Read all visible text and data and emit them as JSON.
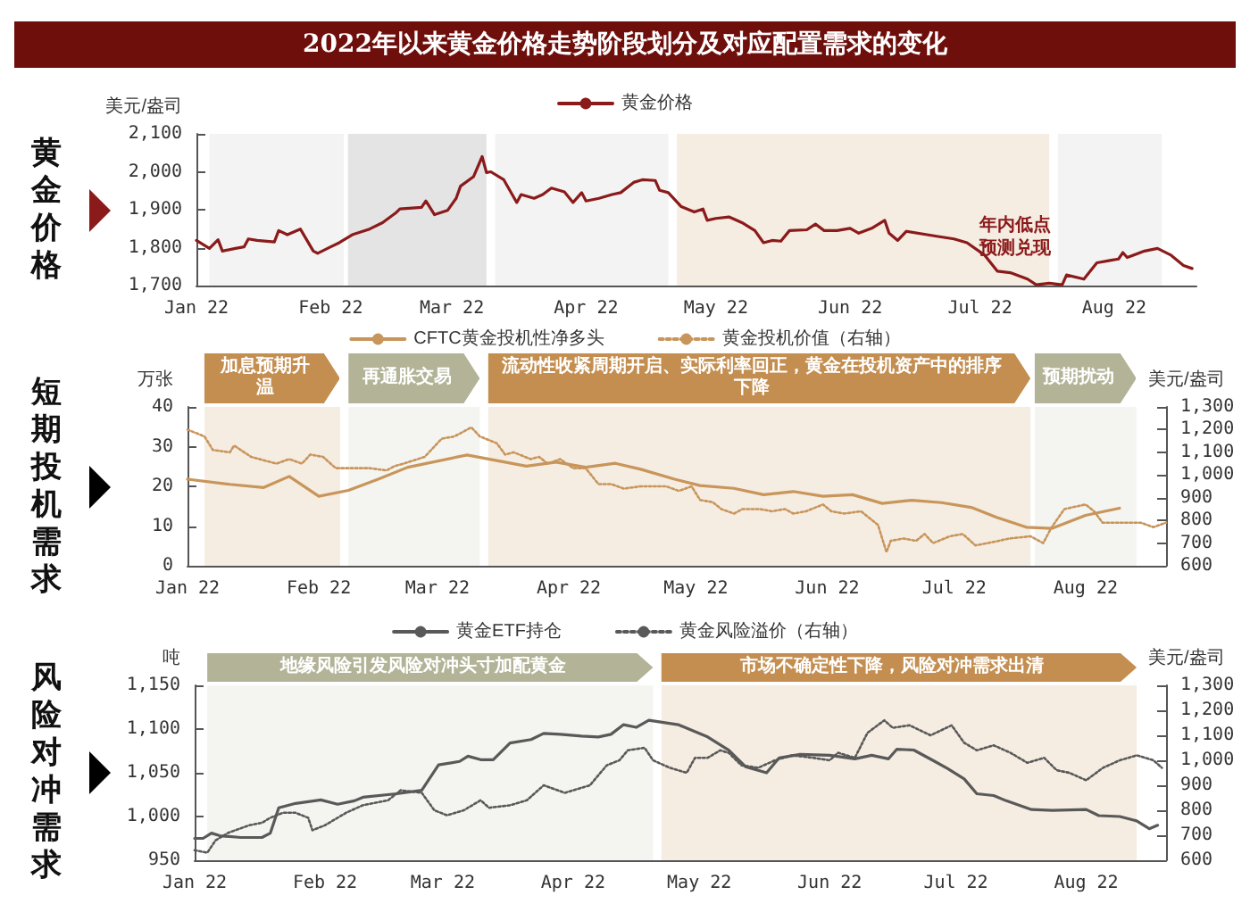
{
  "chart_data": [
    {
      "type": "line",
      "title": "2022年以来黄金价格走势阶段划分及对应配置需求的变化",
      "ylabel": "美元/盎司",
      "legend": "top",
      "marker": "none",
      "grid": false,
      "annotations": [
        "黄金价格",
        {
          "text": "年内低点预测兑现",
          "x": "2022-07-14",
          "y": 1702
        }
      ],
      "xlim": [
        "2022-01-01",
        "2022-08-20"
      ],
      "xticks": [
        {
          "value": "2022-01-01",
          "label": "Jan 22"
        },
        {
          "value": "2022-02-01",
          "label": "Feb 22"
        },
        {
          "value": "2022-03-01",
          "label": "Mar 22"
        },
        {
          "value": "2022-04-01",
          "label": "Apr 22"
        },
        {
          "value": "2022-05-01",
          "label": "May 22"
        },
        {
          "value": "2022-06-01",
          "label": "Jun 22"
        },
        {
          "value": "2022-07-01",
          "label": "Jul 22"
        },
        {
          "value": "2022-08-01",
          "label": "Aug 22"
        }
      ],
      "ylim": [
        1700,
        2100
      ],
      "yticks": [
        {
          "value": 1700,
          "label": "1,700"
        },
        {
          "value": 1800,
          "label": "1,800"
        },
        {
          "value": 1900,
          "label": "1,900"
        },
        {
          "value": 2000,
          "label": "2,000"
        },
        {
          "value": 2100,
          "label": "2,100"
        }
      ],
      "bands": [
        {
          "axis": "x",
          "from": "2022-01-04",
          "to": "2022-02-04",
          "color": "#f3f3f3"
        },
        {
          "axis": "x",
          "from": "2022-02-05",
          "to": "2022-03-09",
          "color": "#e4e4e4"
        },
        {
          "axis": "x",
          "from": "2022-03-11",
          "to": "2022-04-20",
          "color": "#f3f3f3"
        },
        {
          "axis": "x",
          "from": "2022-04-22",
          "to": "2022-07-17",
          "color": "#f5ece2"
        },
        {
          "axis": "x",
          "from": "2022-07-19",
          "to": "2022-08-12",
          "color": "#f3f3f3"
        }
      ],
      "series": [
        {
          "name": "黄金价格",
          "color": "#8b1a1a",
          "line_style": "solid",
          "x": [
            "2022-01-01",
            "2022-01-04",
            "2022-01-06",
            "2022-01-07",
            "2022-01-10",
            "2022-01-12",
            "2022-01-13",
            "2022-01-15",
            "2022-01-19",
            "2022-01-20",
            "2022-01-22",
            "2022-01-25",
            "2022-01-28",
            "2022-01-29",
            "2022-02-01",
            "2022-02-03",
            "2022-02-06",
            "2022-02-10",
            "2022-02-13",
            "2022-02-16",
            "2022-02-17",
            "2022-02-22",
            "2022-02-23",
            "2022-02-25",
            "2022-02-28",
            "2022-03-02",
            "2022-03-03",
            "2022-03-06",
            "2022-03-08",
            "2022-03-09",
            "2022-03-10",
            "2022-03-13",
            "2022-03-16",
            "2022-03-17",
            "2022-03-20",
            "2022-03-22",
            "2022-03-24",
            "2022-03-27",
            "2022-03-29",
            "2022-03-31",
            "2022-04-01",
            "2022-04-04",
            "2022-04-07",
            "2022-04-09",
            "2022-04-12",
            "2022-04-14",
            "2022-04-17",
            "2022-04-18",
            "2022-04-20",
            "2022-04-23",
            "2022-04-26",
            "2022-04-28",
            "2022-04-29",
            "2022-05-01",
            "2022-05-04",
            "2022-05-07",
            "2022-05-10",
            "2022-05-12",
            "2022-05-14",
            "2022-05-16",
            "2022-05-18",
            "2022-05-22",
            "2022-05-24",
            "2022-05-26",
            "2022-05-29",
            "2022-06-01",
            "2022-06-03",
            "2022-06-06",
            "2022-06-09",
            "2022-06-10",
            "2022-06-12",
            "2022-06-14",
            "2022-06-21",
            "2022-06-25",
            "2022-06-28",
            "2022-07-02",
            "2022-07-05",
            "2022-07-08",
            "2022-07-12",
            "2022-07-14",
            "2022-07-17",
            "2022-07-20",
            "2022-07-21",
            "2022-07-25",
            "2022-07-28",
            "2022-07-31",
            "2022-08-02",
            "2022-08-03",
            "2022-08-04",
            "2022-08-08",
            "2022-08-11",
            "2022-08-14",
            "2022-08-17",
            "2022-08-19"
          ],
          "values": [
            1819,
            1798,
            1821,
            1791,
            1798,
            1802,
            1823,
            1819,
            1815,
            1845,
            1834,
            1849,
            1791,
            1785,
            1802,
            1813,
            1834,
            1849,
            1866,
            1891,
            1902,
            1906,
            1923,
            1887,
            1898,
            1930,
            1962,
            1987,
            2040,
            1998,
            2000,
            1979,
            1919,
            1940,
            1930,
            1940,
            1957,
            1947,
            1919,
            1945,
            1923,
            1930,
            1940,
            1945,
            1972,
            1979,
            1977,
            1951,
            1945,
            1908,
            1894,
            1902,
            1872,
            1877,
            1881,
            1866,
            1845,
            1813,
            1819,
            1817,
            1845,
            1847,
            1862,
            1845,
            1845,
            1851,
            1838,
            1851,
            1872,
            1838,
            1819,
            1843,
            1830,
            1823,
            1813,
            1781,
            1738,
            1734,
            1717,
            1702,
            1706,
            1702,
            1728,
            1717,
            1760,
            1766,
            1770,
            1787,
            1774,
            1791,
            1798,
            1781,
            1753,
            1745
          ]
        }
      ]
    },
    {
      "type": "line",
      "ylabel": "万张",
      "y2label": "美元/盎司",
      "legend": "top",
      "marker": "none",
      "grid": false,
      "annotations": [
        "短期投机需求"
      ],
      "xlim": [
        "2022-01-01",
        "2022-08-20"
      ],
      "xticks": [
        {
          "value": "2022-01-01",
          "label": "Jan 22"
        },
        {
          "value": "2022-02-01",
          "label": "Feb 22"
        },
        {
          "value": "2022-03-01",
          "label": "Mar 22"
        },
        {
          "value": "2022-04-01",
          "label": "Apr 22"
        },
        {
          "value": "2022-05-01",
          "label": "May 22"
        },
        {
          "value": "2022-06-01",
          "label": "Jun 22"
        },
        {
          "value": "2022-07-01",
          "label": "Jul 22"
        },
        {
          "value": "2022-08-01",
          "label": "Aug 22"
        }
      ],
      "ylim": [
        0,
        40
      ],
      "yticks": [
        0,
        10,
        20,
        30,
        40
      ],
      "y2lim": [
        600,
        1300
      ],
      "y2ticks": [
        600,
        700,
        800,
        900,
        {
          "value": 1000,
          "label": "1,000"
        },
        {
          "value": 1100,
          "label": "1,100"
        },
        {
          "value": 1200,
          "label": "1,200"
        },
        {
          "value": 1300,
          "label": "1,300"
        }
      ],
      "bands": [
        {
          "axis": "x",
          "from": "2022-01-05",
          "to": "2022-02-06",
          "color": "#f5ece2",
          "label": "加息预期升温"
        },
        {
          "axis": "x",
          "from": "2022-02-08",
          "to": "2022-03-11",
          "color": "#f4f4f0",
          "label": "再通胀交易"
        },
        {
          "axis": "x",
          "from": "2022-03-13",
          "to": "2022-07-19",
          "color": "#f5ece2",
          "label": "流动性收紧周期开启、实际利率回正，黄金在投机资产中的排序下降"
        },
        {
          "axis": "x",
          "from": "2022-07-20",
          "to": "2022-08-13",
          "color": "#f4f4f0",
          "label": "预期扰动"
        }
      ],
      "series": [
        {
          "name": "CFTC黄金投机性净多头",
          "color": "#c8955a",
          "line_style": "solid",
          "x": [
            "2022-01-01",
            "2022-01-11",
            "2022-01-19",
            "2022-01-25",
            "2022-02-01",
            "2022-02-08",
            "2022-02-15",
            "2022-02-22",
            "2022-03-08",
            "2022-03-22",
            "2022-03-29",
            "2022-04-05",
            "2022-04-12",
            "2022-04-18",
            "2022-04-26",
            "2022-05-02",
            "2022-05-10",
            "2022-05-17",
            "2022-05-24",
            "2022-05-31",
            "2022-06-07",
            "2022-06-14",
            "2022-06-21",
            "2022-06-28",
            "2022-07-05",
            "2022-07-11",
            "2022-07-18",
            "2022-07-24",
            "2022-08-01",
            "2022-08-09"
          ],
          "values": [
            21.8,
            20.5,
            19.7,
            22.5,
            17.5,
            19,
            21.8,
            24.8,
            27.9,
            25.1,
            26.1,
            24.8,
            25.8,
            24.3,
            21.8,
            20.2,
            19.5,
            17.9,
            18.7,
            17.5,
            17.9,
            15.7,
            16.5,
            15.9,
            14.7,
            12.2,
            9.7,
            9.4,
            12.7,
            14.5
          ]
        },
        {
          "name": "黄金投机价值（右轴）",
          "color": "#c8955a",
          "line_style": "dotted",
          "axis": "y2",
          "x": [
            "2022-01-01",
            "2022-01-05",
            "2022-01-07",
            "2022-01-11",
            "2022-01-12",
            "2022-01-16",
            "2022-01-20",
            "2022-01-22",
            "2022-01-25",
            "2022-01-28",
            "2022-01-30",
            "2022-02-02",
            "2022-02-05",
            "2022-02-10",
            "2022-02-13",
            "2022-02-17",
            "2022-02-19",
            "2022-02-21",
            "2022-02-26",
            "2022-03-02",
            "2022-03-05",
            "2022-03-09",
            "2022-03-11",
            "2022-03-15",
            "2022-03-17",
            "2022-03-19",
            "2022-03-23",
            "2022-03-25",
            "2022-03-27",
            "2022-03-30",
            "2022-04-02",
            "2022-04-05",
            "2022-04-08",
            "2022-04-11",
            "2022-04-14",
            "2022-04-18",
            "2022-04-21",
            "2022-04-24",
            "2022-04-27",
            "2022-04-30",
            "2022-05-02",
            "2022-05-05",
            "2022-05-07",
            "2022-05-10",
            "2022-05-12",
            "2022-05-16",
            "2022-05-19",
            "2022-05-22",
            "2022-05-24",
            "2022-05-27",
            "2022-05-31",
            "2022-06-02",
            "2022-06-05",
            "2022-06-09",
            "2022-06-13",
            "2022-06-15",
            "2022-06-16",
            "2022-06-19",
            "2022-06-22",
            "2022-06-24",
            "2022-06-26",
            "2022-06-30",
            "2022-07-03",
            "2022-07-06",
            "2022-07-09",
            "2022-07-14",
            "2022-07-19",
            "2022-07-22",
            "2022-07-24",
            "2022-07-27",
            "2022-08-01",
            "2022-08-03",
            "2022-08-05",
            "2022-08-09",
            "2022-08-14",
            "2022-08-17",
            "2022-08-20"
          ],
          "values": [
            1200,
            1170,
            1110,
            1100,
            1130,
            1080,
            1060,
            1050,
            1070,
            1050,
            1090,
            1080,
            1030,
            1030,
            1030,
            1020,
            1040,
            1050,
            1080,
            1160,
            1170,
            1210,
            1170,
            1140,
            1090,
            1100,
            1070,
            1080,
            1050,
            1070,
            1030,
            1030,
            960,
            960,
            940,
            950,
            950,
            950,
            930,
            950,
            890,
            880,
            850,
            830,
            850,
            850,
            840,
            850,
            830,
            840,
            870,
            840,
            830,
            840,
            780,
            660,
            710,
            720,
            710,
            740,
            700,
            730,
            740,
            690,
            700,
            720,
            730,
            700,
            770,
            850,
            870,
            840,
            790,
            790,
            790,
            770,
            790
          ]
        }
      ]
    },
    {
      "type": "line",
      "ylabel": "吨",
      "y2label": "美元/盎司",
      "legend": "top",
      "marker": "none",
      "grid": false,
      "annotations": [
        "风险对冲需求"
      ],
      "xlim": [
        "2022-01-01",
        "2022-08-20"
      ],
      "xticks": [
        {
          "value": "2022-01-01",
          "label": "Jan 22"
        },
        {
          "value": "2022-02-01",
          "label": "Feb 22"
        },
        {
          "value": "2022-03-01",
          "label": "Mar 22"
        },
        {
          "value": "2022-04-01",
          "label": "Apr 22"
        },
        {
          "value": "2022-05-01",
          "label": "May 22"
        },
        {
          "value": "2022-06-01",
          "label": "Jun 22"
        },
        {
          "value": "2022-07-01",
          "label": "Jul 22"
        },
        {
          "value": "2022-08-01",
          "label": "Aug 22"
        }
      ],
      "ylim": [
        950,
        1150
      ],
      "yticks": [
        950,
        {
          "value": 1000,
          "label": "1,000"
        },
        {
          "value": 1050,
          "label": "1,050"
        },
        {
          "value": 1100,
          "label": "1,100"
        },
        {
          "value": 1150,
          "label": "1,150"
        }
      ],
      "y2lim": [
        600,
        1300
      ],
      "y2ticks": [
        600,
        700,
        800,
        900,
        {
          "value": 1000,
          "label": "1,000"
        },
        {
          "value": 1100,
          "label": "1,100"
        },
        {
          "value": 1200,
          "label": "1,200"
        },
        {
          "value": 1300,
          "label": "1,300"
        }
      ],
      "bands": [
        {
          "axis": "x",
          "from": "2022-01-04",
          "to": "2022-04-20",
          "color": "#f4f4f0",
          "label": "地缘风险引发风险对冲头寸加配黄金"
        },
        {
          "axis": "x",
          "from": "2022-04-22",
          "to": "2022-08-13",
          "color": "#f5ece2",
          "label": "市场不确定性下降，风险对冲需求出清"
        }
      ],
      "series": [
        {
          "name": "黄金ETF持仓",
          "color": "#595959",
          "line_style": "solid",
          "x": [
            "2022-01-01",
            "2022-01-03",
            "2022-01-05",
            "2022-01-07",
            "2022-01-12",
            "2022-01-17",
            "2022-01-19",
            "2022-01-21",
            "2022-01-25",
            "2022-01-31",
            "2022-02-04",
            "2022-02-08",
            "2022-02-10",
            "2022-02-18",
            "2022-02-24",
            "2022-02-28",
            "2022-03-05",
            "2022-03-07",
            "2022-03-10",
            "2022-03-13",
            "2022-03-17",
            "2022-03-22",
            "2022-03-25",
            "2022-03-29",
            "2022-04-03",
            "2022-04-07",
            "2022-04-10",
            "2022-04-13",
            "2022-04-16",
            "2022-04-19",
            "2022-04-26",
            "2022-05-03",
            "2022-05-08",
            "2022-05-12",
            "2022-05-17",
            "2022-05-20",
            "2022-05-25",
            "2022-06-01",
            "2022-06-07",
            "2022-06-11",
            "2022-06-15",
            "2022-06-17",
            "2022-06-21",
            "2022-06-26",
            "2022-06-29",
            "2022-07-03",
            "2022-07-06",
            "2022-07-10",
            "2022-07-13",
            "2022-07-19",
            "2022-07-24",
            "2022-08-01",
            "2022-08-04",
            "2022-08-09",
            "2022-08-13",
            "2022-08-16",
            "2022-08-18"
          ],
          "values": [
            975,
            975,
            981,
            978,
            976,
            976,
            981,
            1010,
            1015,
            1019,
            1014,
            1018,
            1022,
            1026,
            1030,
            1059,
            1063,
            1069,
            1065,
            1065,
            1084,
            1088,
            1095,
            1094,
            1092,
            1091,
            1094,
            1105,
            1102,
            1110,
            1105,
            1091,
            1076,
            1057,
            1050,
            1067,
            1071,
            1070,
            1066,
            1070,
            1066,
            1077,
            1076,
            1063,
            1055,
            1043,
            1026,
            1024,
            1018,
            1008,
            1007,
            1008,
            1001,
            1000,
            995,
            986,
            990
          ]
        },
        {
          "name": "黄金风险溢价（右轴）",
          "color": "#595959",
          "line_style": "dotted",
          "axis": "y2",
          "x": [
            "2022-01-01",
            "2022-01-04",
            "2022-01-06",
            "2022-01-09",
            "2022-01-14",
            "2022-01-17",
            "2022-01-19",
            "2022-01-22",
            "2022-01-25",
            "2022-01-28",
            "2022-01-29",
            "2022-02-01",
            "2022-02-06",
            "2022-02-10",
            "2022-02-16",
            "2022-02-19",
            "2022-02-24",
            "2022-02-27",
            "2022-03-02",
            "2022-03-06",
            "2022-03-10",
            "2022-03-12",
            "2022-03-17",
            "2022-03-21",
            "2022-03-25",
            "2022-03-30",
            "2022-04-05",
            "2022-04-09",
            "2022-04-12",
            "2022-04-14",
            "2022-04-18",
            "2022-04-20",
            "2022-04-24",
            "2022-04-28",
            "2022-04-30",
            "2022-05-03",
            "2022-05-06",
            "2022-05-08",
            "2022-05-11",
            "2022-05-15",
            "2022-05-19",
            "2022-05-23",
            "2022-05-28",
            "2022-06-01",
            "2022-06-03",
            "2022-06-07",
            "2022-06-10",
            "2022-06-14",
            "2022-06-16",
            "2022-06-20",
            "2022-06-25",
            "2022-06-30",
            "2022-07-03",
            "2022-07-06",
            "2022-07-10",
            "2022-07-14",
            "2022-07-18",
            "2022-07-22",
            "2022-07-25",
            "2022-07-28",
            "2022-08-01",
            "2022-08-05",
            "2022-08-09",
            "2022-08-13",
            "2022-08-17",
            "2022-08-19"
          ],
          "values": [
            640,
            630,
            680,
            710,
            740,
            750,
            770,
            790,
            790,
            770,
            720,
            740,
            790,
            820,
            840,
            880,
            870,
            800,
            780,
            800,
            840,
            810,
            820,
            840,
            900,
            870,
            900,
            980,
            1000,
            1040,
            1050,
            1000,
            970,
            950,
            1010,
            1010,
            1040,
            1030,
            980,
            970,
            1000,
            1020,
            1010,
            1000,
            1030,
            1010,
            1110,
            1160,
            1130,
            1140,
            1100,
            1140,
            1070,
            1040,
            1060,
            1030,
            990,
            1010,
            960,
            950,
            920,
            970,
            1000,
            1020,
            1000,
            970
          ]
        }
      ]
    }
  ]
}
